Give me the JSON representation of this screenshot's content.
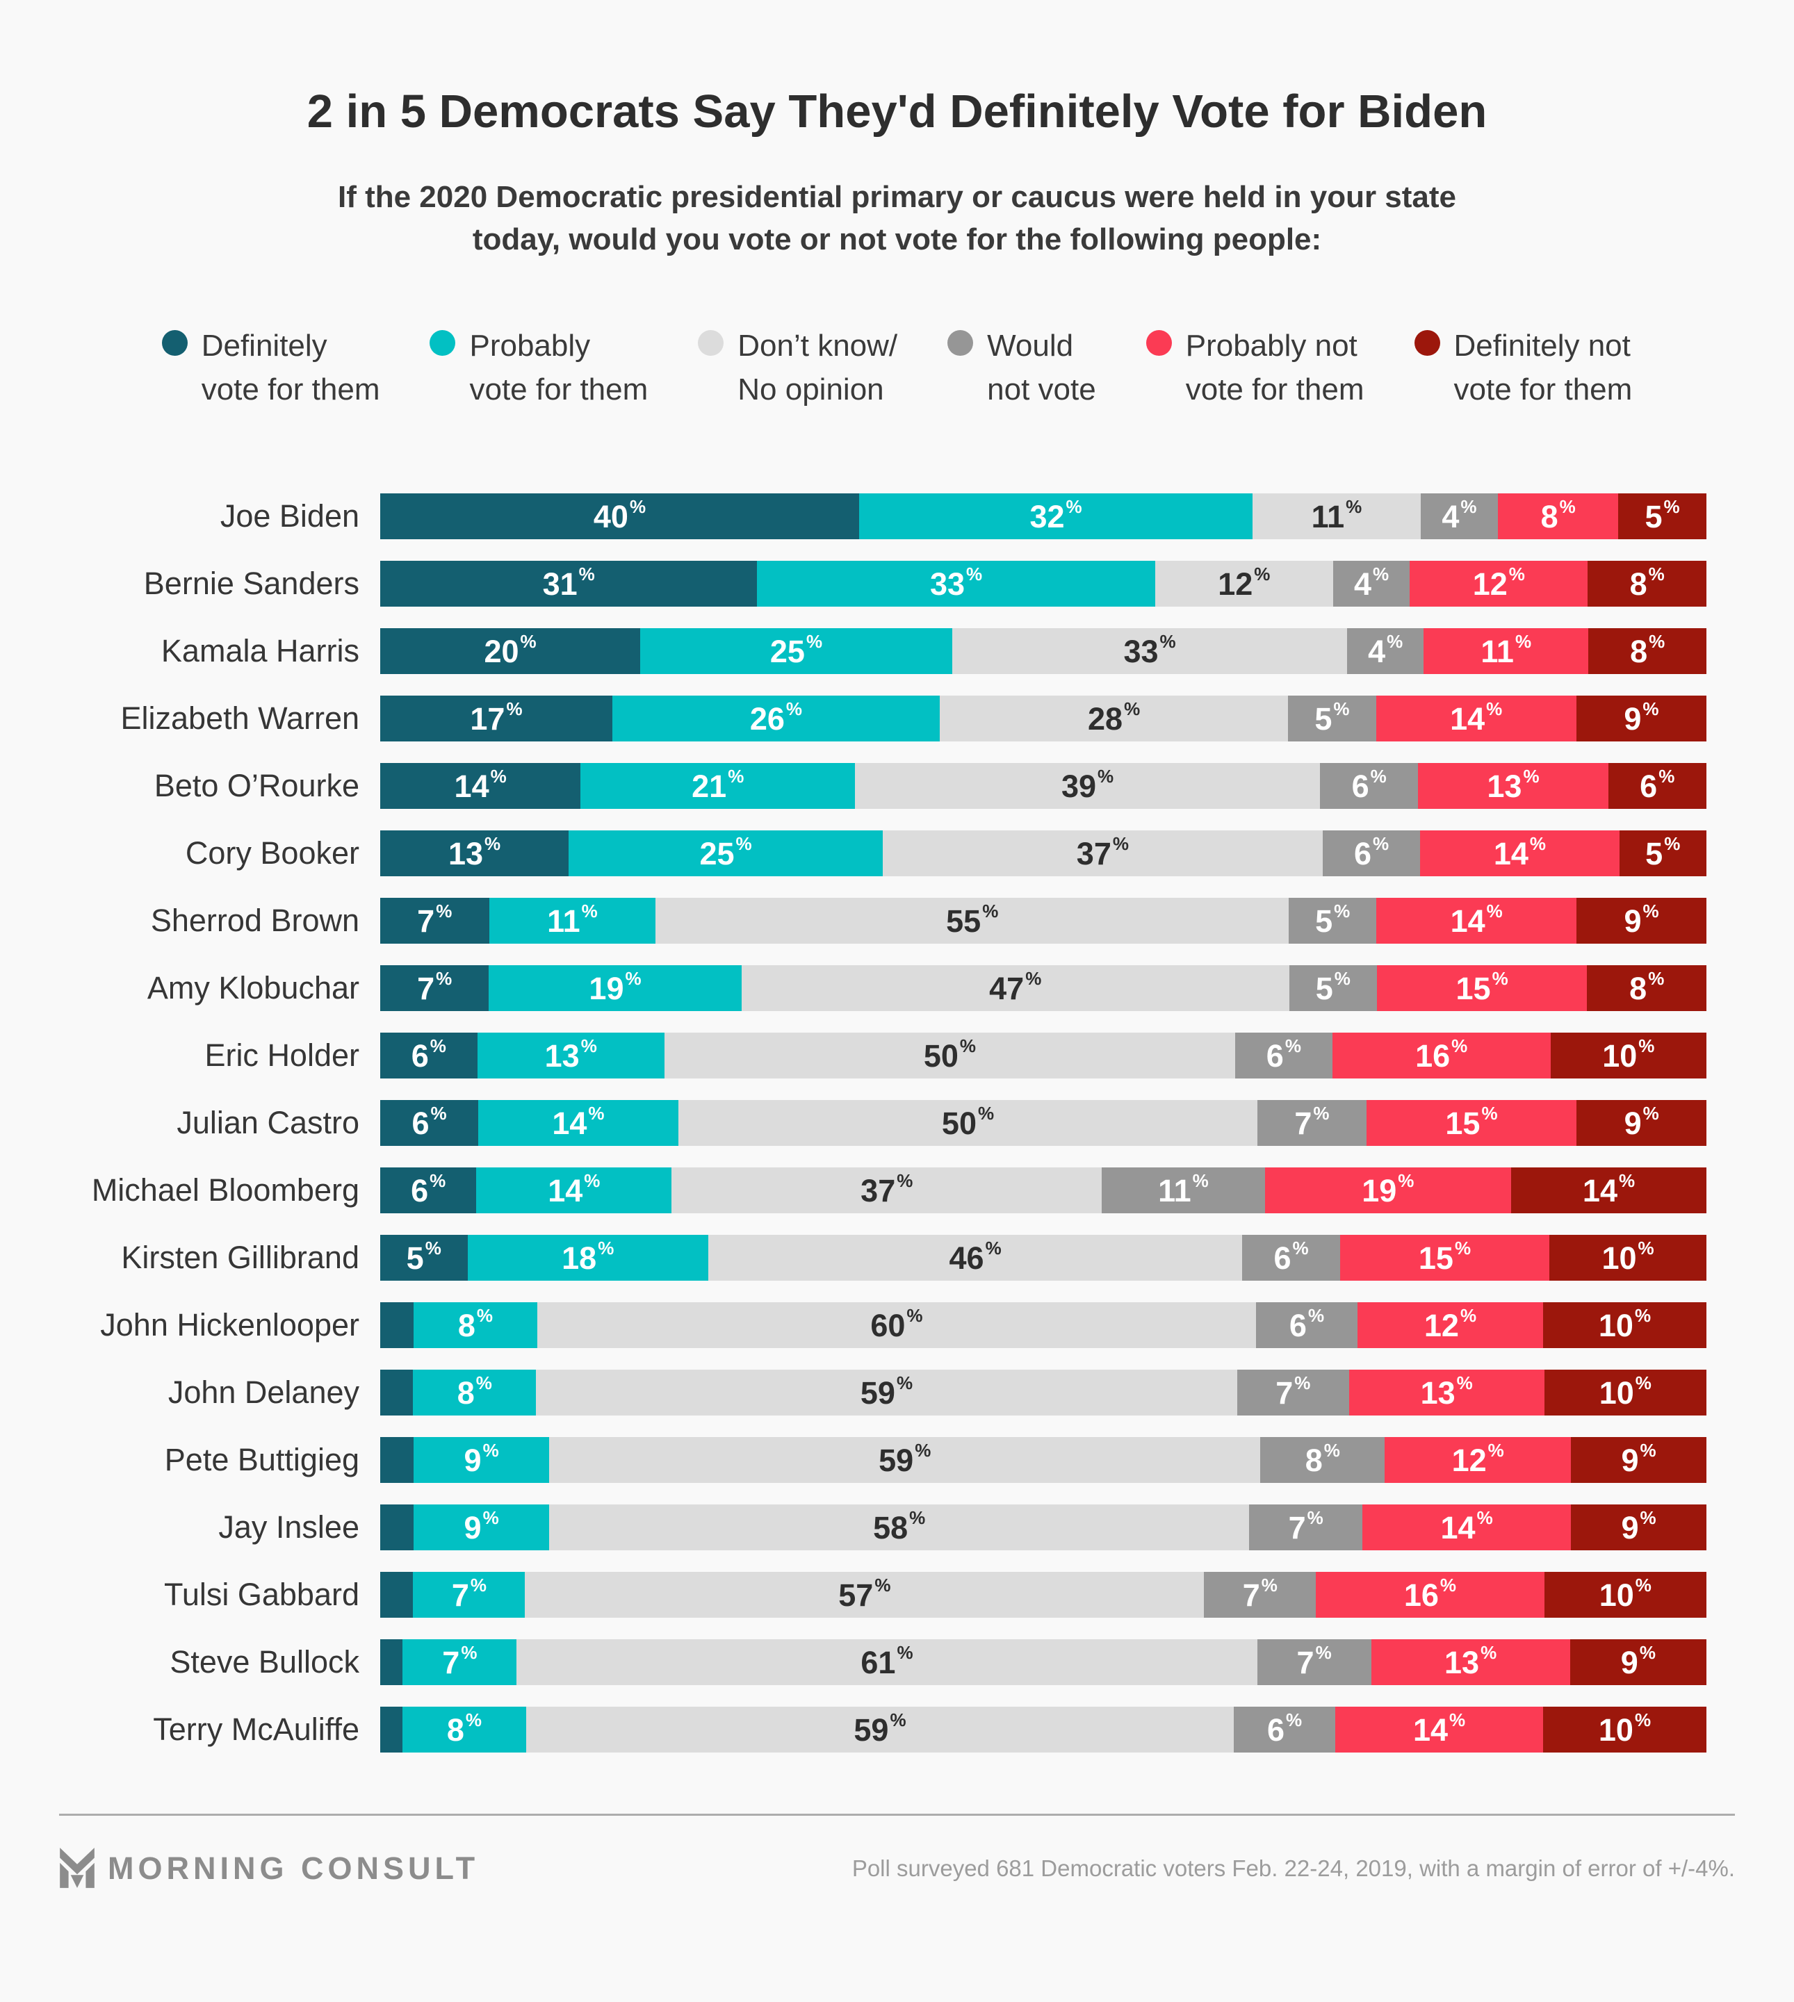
{
  "title": "2 in 5 Democrats Say They'd Definitely Vote for Biden",
  "subtitle": "If the 2020 Democratic presidential primary or caucus were held in your state today, would you vote or not vote for the following people:",
  "colors": {
    "background": "#F9F9F9",
    "definitely": "#145F70",
    "probably": "#02C0C3",
    "dont_know": "#DCDCDC",
    "would_not": "#969696",
    "probably_not": "#FB3B54",
    "definitely_not": "#9C170C",
    "label_on_light": "#2E2E2E",
    "label_on_dark": "#FFFFFF"
  },
  "legend": [
    {
      "key": "definitely",
      "line1": "Definitely",
      "line2": "vote for them"
    },
    {
      "key": "probably",
      "line1": "Probably",
      "line2": "vote for them"
    },
    {
      "key": "dont_know",
      "line1": "Don’t know/",
      "line2": "No opinion"
    },
    {
      "key": "would_not",
      "line1": "Would",
      "line2": "not vote"
    },
    {
      "key": "probably_not",
      "line1": "Probably not",
      "line2": "vote for them"
    },
    {
      "key": "definitely_not",
      "line1": "Definitely not",
      "line2": "vote for them"
    }
  ],
  "chart_data": {
    "type": "bar",
    "stacked": true,
    "orientation": "horizontal",
    "unit": "%",
    "label_min_value": 4,
    "series_keys": [
      "definitely",
      "probably",
      "dont_know",
      "would_not",
      "probably_not",
      "definitely_not"
    ],
    "series_names": [
      "Definitely vote for them",
      "Probably vote for them",
      "Don't know/No opinion",
      "Would not vote",
      "Probably not vote for them",
      "Definitely not vote for them"
    ],
    "categories": [
      "Joe Biden",
      "Bernie Sanders",
      "Kamala Harris",
      "Elizabeth Warren",
      "Beto O’Rourke",
      "Cory Booker",
      "Sherrod Brown",
      "Amy Klobuchar",
      "Eric Holder",
      "Julian Castro",
      "Michael Bloomberg",
      "Kirsten Gillibrand",
      "John Hickenlooper",
      "John Delaney",
      "Pete Buttigieg",
      "Jay Inslee",
      "Tulsi Gabbard",
      "Steve Bullock",
      "Terry McAuliffe"
    ],
    "rows": [
      [
        40,
        32,
        11,
        4,
        8,
        5
      ],
      [
        31,
        33,
        12,
        4,
        12,
        8
      ],
      [
        20,
        25,
        33,
        4,
        11,
        8
      ],
      [
        17,
        26,
        28,
        5,
        14,
        9
      ],
      [
        14,
        21,
        39,
        6,
        13,
        6
      ],
      [
        13,
        25,
        37,
        6,
        14,
        5
      ],
      [
        7,
        11,
        55,
        5,
        14,
        9
      ],
      [
        7,
        19,
        47,
        5,
        15,
        8
      ],
      [
        6,
        13,
        50,
        6,
        16,
        10
      ],
      [
        6,
        14,
        50,
        7,
        15,
        9
      ],
      [
        6,
        14,
        37,
        11,
        19,
        14
      ],
      [
        5,
        18,
        46,
        6,
        15,
        10
      ],
      [
        3,
        8,
        60,
        6,
        12,
        10
      ],
      [
        3,
        8,
        59,
        7,
        13,
        10
      ],
      [
        3,
        9,
        59,
        8,
        12,
        9
      ],
      [
        3,
        9,
        58,
        7,
        14,
        9
      ],
      [
        3,
        7,
        57,
        7,
        16,
        10
      ],
      [
        2,
        7,
        61,
        7,
        13,
        9
      ],
      [
        2,
        8,
        59,
        6,
        14,
        10
      ]
    ]
  },
  "footer": {
    "logo_text": "MORNING CONSULT",
    "note": "Poll surveyed 681 Democratic voters Feb. 22-24, 2019, with a margin of error of +/-4%."
  }
}
